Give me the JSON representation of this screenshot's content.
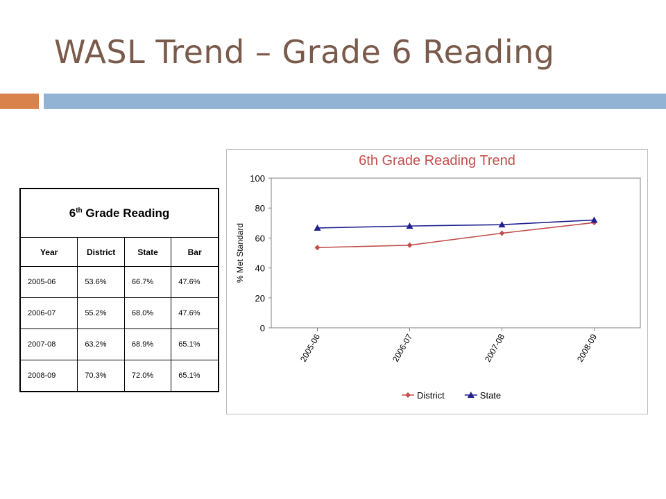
{
  "slide": {
    "title": "WASL Trend – Grade 6 Reading",
    "accent_colors": {
      "left": "#d9824b",
      "right": "#93b3d4",
      "title": "#7a5a4a"
    }
  },
  "table": {
    "caption_main": "6",
    "caption_sup": "th",
    "caption_rest": " Grade Reading",
    "headers": [
      "Year",
      "District",
      "State",
      "Bar"
    ],
    "rows": [
      [
        "2005-06",
        "53.6%",
        "66.7%",
        "47.6%"
      ],
      [
        "2006-07",
        "55.2%",
        "68.0%",
        "47.6%"
      ],
      [
        "2007-08",
        "63.2%",
        "68.9%",
        "65.1%"
      ],
      [
        "2008-09",
        "70.3%",
        "72.0%",
        "65.1%"
      ]
    ]
  },
  "chart_data": {
    "type": "line",
    "title": "6th Grade Reading Trend",
    "xlabel": "",
    "ylabel": "% Met Standard",
    "categories": [
      "2005-06",
      "2006-07",
      "2007-08",
      "2008-09"
    ],
    "ylim": [
      0,
      100
    ],
    "yticks": [
      0,
      20,
      40,
      60,
      80,
      100
    ],
    "grid": false,
    "legend_position": "bottom",
    "series": [
      {
        "name": "District",
        "values": [
          53.6,
          55.2,
          63.2,
          70.3
        ],
        "color": "#c0504d",
        "marker": "diamond"
      },
      {
        "name": "State",
        "values": [
          66.7,
          68.0,
          68.9,
          72.0
        ],
        "color": "#1f1f8f",
        "marker": "triangle"
      }
    ]
  }
}
